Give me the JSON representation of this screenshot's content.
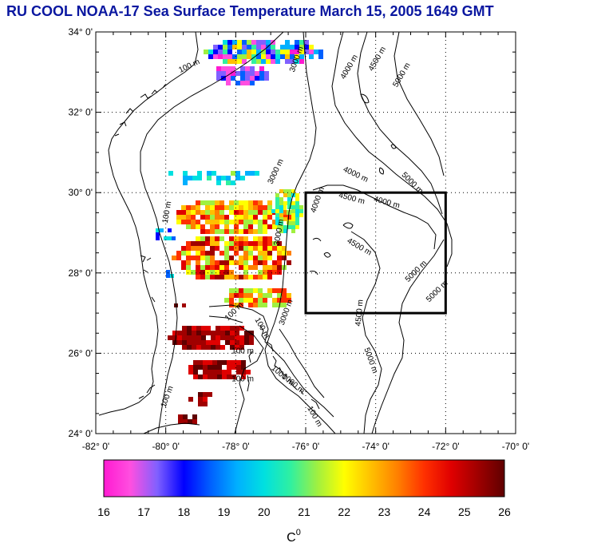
{
  "title": "RU COOL  NOAA-17 Sea Surface Temperature March 15, 2005 1649 GMT",
  "map": {
    "lat_labels": [
      "34° 0'",
      "32° 0'",
      "30° 0'",
      "28° 0'",
      "26° 0'",
      "24° 0'"
    ],
    "lon_labels": [
      "-82° 0'",
      "-80° 0'",
      "-78° 0'",
      "-76° 0'",
      "-74° 0'",
      "-72° 0'",
      "-70° 0'"
    ],
    "lat_range": [
      24,
      34
    ],
    "lon_range": [
      -82,
      -70
    ],
    "box": {
      "lon": [
        -76,
        -72
      ],
      "lat": [
        27,
        30
      ]
    },
    "contour_labels": [
      {
        "text": "100 m",
        "lon": -79.3,
        "lat": 33.1,
        "rot": -25
      },
      {
        "text": "3000 m",
        "lon": -76.2,
        "lat": 33.3,
        "rot": -70
      },
      {
        "text": "4000 m",
        "lon": -74.7,
        "lat": 33.1,
        "rot": -60
      },
      {
        "text": "4500 m",
        "lon": -73.9,
        "lat": 33.3,
        "rot": -60
      },
      {
        "text": "5000 m",
        "lon": -73.2,
        "lat": 32.9,
        "rot": -60
      },
      {
        "text": "3000 m",
        "lon": -76.8,
        "lat": 30.5,
        "rot": -65
      },
      {
        "text": "100 m",
        "lon": -79.9,
        "lat": 29.5,
        "rot": -80
      },
      {
        "text": "4000 m",
        "lon": -74.6,
        "lat": 30.4,
        "rot": 25
      },
      {
        "text": "4500 m",
        "lon": -74.7,
        "lat": 29.8,
        "rot": 15
      },
      {
        "text": "4000 m",
        "lon": -73.7,
        "lat": 29.7,
        "rot": 15
      },
      {
        "text": "5000 m",
        "lon": -73.0,
        "lat": 30.2,
        "rot": 45
      },
      {
        "text": "4500 m",
        "lon": -74.5,
        "lat": 28.6,
        "rot": 30
      },
      {
        "text": "5000 m",
        "lon": -72.8,
        "lat": 28.0,
        "rot": -45
      },
      {
        "text": "5000 m",
        "lon": -72.2,
        "lat": 27.5,
        "rot": -45
      },
      {
        "text": "4500 m",
        "lon": -74.4,
        "lat": 27.0,
        "rot": -85
      },
      {
        "text": "5000 m",
        "lon": -74.2,
        "lat": 25.8,
        "rot": 70
      },
      {
        "text": "3000 m",
        "lon": -76.5,
        "lat": 27.0,
        "rot": -70
      },
      {
        "text": "100 m",
        "lon": -78.0,
        "lat": 27.0,
        "rot": -45
      },
      {
        "text": "100 m",
        "lon": -77.3,
        "lat": 26.6,
        "rot": 60
      },
      {
        "text": "100 m",
        "lon": -77.8,
        "lat": 26.0,
        "rot": 0
      },
      {
        "text": "100 m",
        "lon": -77.8,
        "lat": 25.3,
        "rot": 0
      },
      {
        "text": "100 m",
        "lon": -79.9,
        "lat": 24.9,
        "rot": -70
      },
      {
        "text": "1000 m",
        "lon": -76.7,
        "lat": 25.4,
        "rot": 40
      },
      {
        "text": "3000 m",
        "lon": -76.7,
        "lat": 29.0,
        "rot": -80
      },
      {
        "text": "1000 m",
        "lon": -76.4,
        "lat": 25.2,
        "rot": 40
      },
      {
        "text": "100 m",
        "lon": -75.8,
        "lat": 24.4,
        "rot": 60
      },
      {
        "text": "4000 m",
        "lon": -75.6,
        "lat": 29.8,
        "rot": -70
      }
    ]
  },
  "colorbar": {
    "min": 16,
    "max": 26,
    "tick_labels": [
      "16",
      "17",
      "18",
      "19",
      "20",
      "21",
      "22",
      "23",
      "24",
      "25",
      "26"
    ],
    "unit": "C",
    "unit_sup": "0",
    "colors": [
      "#ff1ad1",
      "#ff4fe0",
      "#8060ff",
      "#0000ff",
      "#0060ff",
      "#00b0ff",
      "#00e0e0",
      "#30f0a0",
      "#a0f040",
      "#ffff00",
      "#ffc000",
      "#ff8000",
      "#ff3000",
      "#e00000",
      "#a00000",
      "#600000"
    ]
  }
}
